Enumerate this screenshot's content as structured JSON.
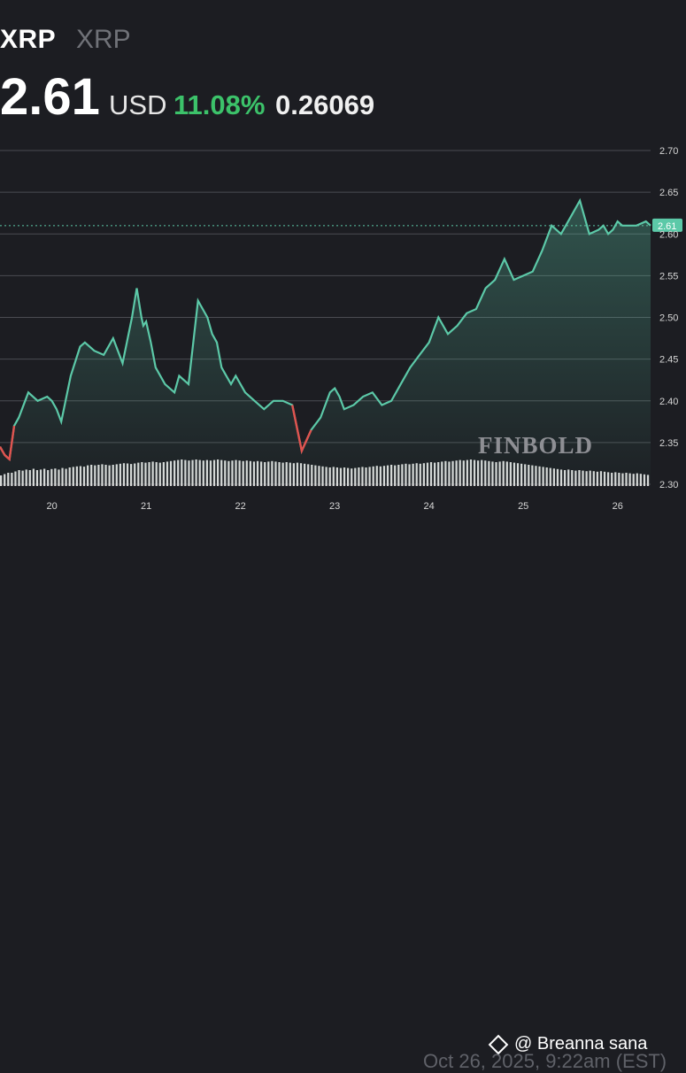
{
  "header": {
    "symbol": "XRP",
    "symbol_sub": "XRP",
    "price": "2.61",
    "currency": "USD",
    "change_pct": "11.08%",
    "change_abs": "0.26069"
  },
  "colors": {
    "background": "#1c1d22",
    "line": "#5cc9a8",
    "line_down": "#e0534f",
    "positive": "#3cc26a",
    "grid": "#4a4c52",
    "volume": "#d8d8d8",
    "watermark": "#8e8f94"
  },
  "watermark": "FINBOLD",
  "source": "@ Breanna sana",
  "timestamp": "Oct 26, 2025, 9:22am (EST)",
  "chart_data": {
    "type": "line",
    "title": "",
    "xlabel": "",
    "ylabel": "",
    "current_price": 2.61,
    "current_label": "2.61",
    "ylim": [
      2.3,
      2.7
    ],
    "yticks": [
      "2.30",
      "2.35",
      "2.40",
      "2.45",
      "2.50",
      "2.55",
      "2.60",
      "2.65",
      "2.70"
    ],
    "xlim": [
      19.45,
      26.35
    ],
    "xticks": [
      "20",
      "21",
      "22",
      "23",
      "24",
      "25",
      "26"
    ],
    "grid": true,
    "series": [
      {
        "x": [
          19.45,
          19.5,
          19.55,
          19.6,
          19.65,
          19.75,
          19.85,
          19.95,
          20.0,
          20.05,
          20.1,
          20.2,
          20.3,
          20.35,
          20.45,
          20.55,
          20.65,
          20.75,
          20.85,
          20.9,
          20.95,
          20.97,
          21.0,
          21.05,
          21.1,
          21.2,
          21.3,
          21.35,
          21.45,
          21.55,
          21.65,
          21.7,
          21.75,
          21.8,
          21.9,
          21.95,
          22.05,
          22.15,
          22.25,
          22.35,
          22.45,
          22.55,
          22.65,
          22.75,
          22.85,
          22.95,
          23.0,
          23.05,
          23.1,
          23.2,
          23.3,
          23.4,
          23.5,
          23.6,
          23.7,
          23.8,
          23.9,
          24.0,
          24.1,
          24.2,
          24.3,
          24.4,
          24.5,
          24.6,
          24.7,
          24.8,
          24.9,
          25.0,
          25.1,
          25.2,
          25.3,
          25.4,
          25.5,
          25.6,
          25.7,
          25.8,
          25.85,
          25.9,
          25.95,
          26.0,
          26.05,
          26.1,
          26.15,
          26.2,
          26.3,
          26.35
        ],
        "y": [
          2.345,
          2.335,
          2.33,
          2.37,
          2.38,
          2.41,
          2.4,
          2.405,
          2.4,
          2.39,
          2.375,
          2.43,
          2.465,
          2.47,
          2.46,
          2.455,
          2.475,
          2.445,
          2.5,
          2.535,
          2.5,
          2.49,
          2.495,
          2.47,
          2.44,
          2.42,
          2.41,
          2.43,
          2.42,
          2.52,
          2.5,
          2.48,
          2.47,
          2.44,
          2.42,
          2.43,
          2.41,
          2.4,
          2.39,
          2.4,
          2.4,
          2.395,
          2.34,
          2.365,
          2.38,
          2.41,
          2.415,
          2.405,
          2.39,
          2.395,
          2.405,
          2.41,
          2.395,
          2.4,
          2.42,
          2.44,
          2.455,
          2.47,
          2.5,
          2.48,
          2.49,
          2.505,
          2.51,
          2.535,
          2.545,
          2.57,
          2.545,
          2.55,
          2.555,
          2.58,
          2.61,
          2.6,
          2.62,
          2.64,
          2.6,
          2.605,
          2.61,
          2.6,
          2.605,
          2.615,
          2.61,
          2.61,
          2.61,
          2.61,
          2.615,
          2.61
        ]
      }
    ],
    "volume": {
      "x_start": 19.45,
      "x_end": 26.35,
      "count": 180,
      "values": [
        0.4,
        0.45,
        0.5,
        0.5,
        0.55,
        0.6,
        0.58,
        0.62,
        0.6,
        0.65,
        0.6,
        0.62,
        0.65,
        0.6,
        0.64,
        0.66,
        0.62,
        0.68,
        0.65,
        0.7,
        0.72,
        0.74,
        0.75,
        0.73,
        0.78,
        0.8,
        0.78,
        0.8,
        0.82,
        0.8,
        0.78,
        0.8,
        0.82,
        0.84,
        0.86,
        0.85,
        0.83,
        0.85,
        0.88,
        0.9,
        0.88,
        0.9,
        0.92,
        0.9,
        0.88,
        0.9,
        0.92,
        0.94,
        0.96,
        0.98,
        1.0,
        0.98,
        0.96,
        0.98,
        1.0,
        0.98,
        0.96,
        0.98,
        0.96,
        0.98,
        1.0,
        0.98,
        0.96,
        0.94,
        0.96,
        0.98,
        0.96,
        0.94,
        0.96,
        0.94,
        0.92,
        0.94,
        0.92,
        0.9,
        0.92,
        0.94,
        0.92,
        0.9,
        0.88,
        0.9,
        0.88,
        0.86,
        0.88,
        0.86,
        0.84,
        0.82,
        0.8,
        0.78,
        0.76,
        0.74,
        0.72,
        0.7,
        0.72,
        0.7,
        0.68,
        0.7,
        0.68,
        0.66,
        0.68,
        0.7,
        0.72,
        0.7,
        0.72,
        0.74,
        0.76,
        0.74,
        0.76,
        0.78,
        0.8,
        0.78,
        0.8,
        0.82,
        0.84,
        0.82,
        0.84,
        0.86,
        0.84,
        0.86,
        0.88,
        0.9,
        0.88,
        0.9,
        0.92,
        0.94,
        0.92,
        0.94,
        0.96,
        0.98,
        0.96,
        0.98,
        1.0,
        0.98,
        0.96,
        0.98,
        0.96,
        0.94,
        0.92,
        0.9,
        0.92,
        0.94,
        0.92,
        0.9,
        0.88,
        0.86,
        0.84,
        0.82,
        0.8,
        0.78,
        0.76,
        0.74,
        0.72,
        0.7,
        0.68,
        0.66,
        0.64,
        0.62,
        0.6,
        0.62,
        0.6,
        0.58,
        0.6,
        0.58,
        0.56,
        0.58,
        0.56,
        0.54,
        0.56,
        0.54,
        0.52,
        0.5,
        0.52,
        0.5,
        0.48,
        0.5,
        0.48,
        0.46,
        0.48,
        0.46,
        0.44,
        0.42
      ]
    }
  }
}
